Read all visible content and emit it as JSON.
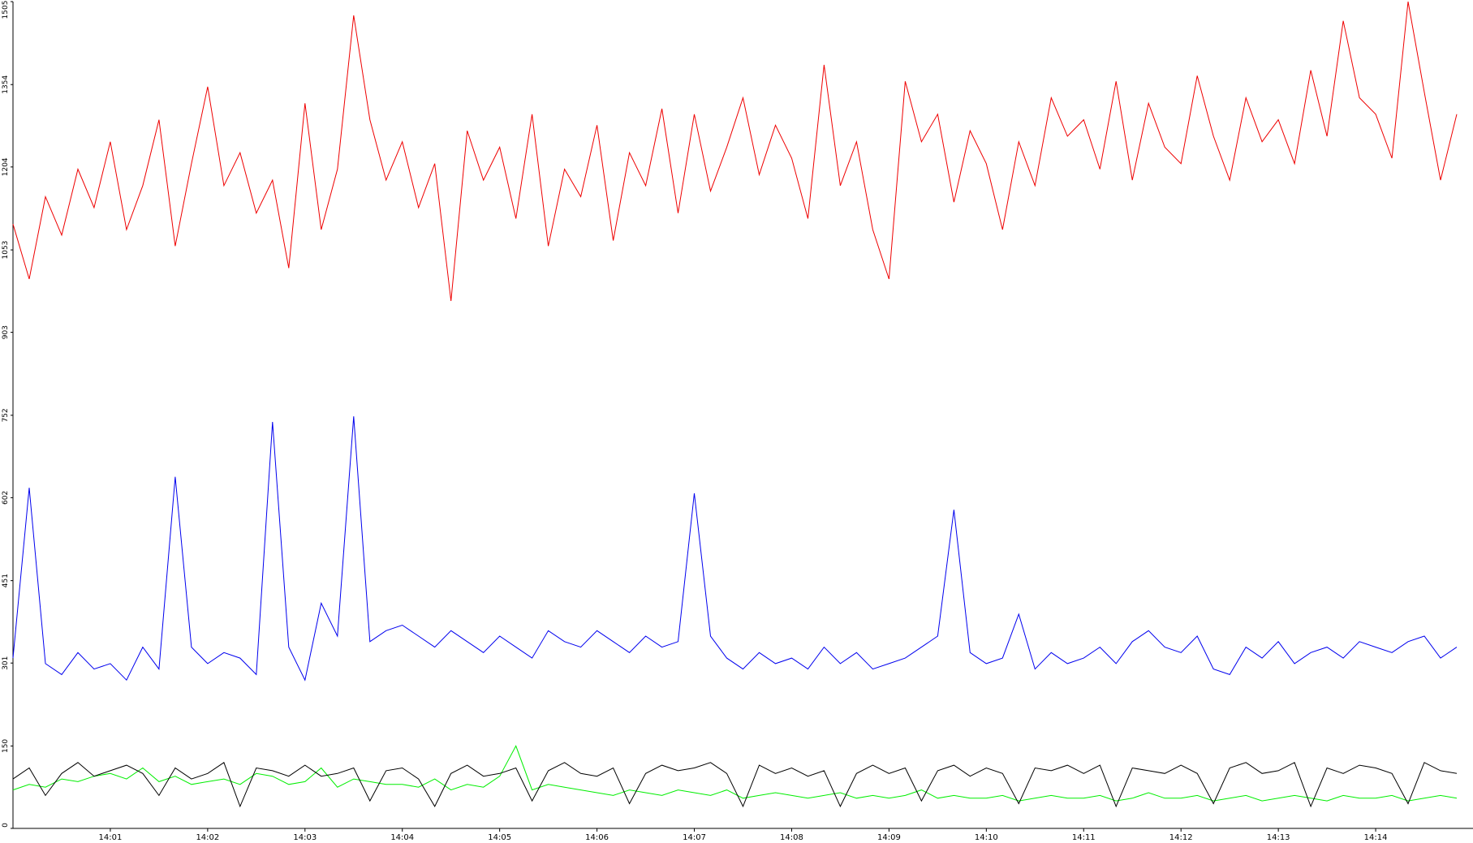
{
  "chart_data": {
    "type": "line",
    "x": [
      "14:00:00",
      "14:00:10",
      "14:00:20",
      "14:00:30",
      "14:00:40",
      "14:00:50",
      "14:01:00",
      "14:01:10",
      "14:01:20",
      "14:01:30",
      "14:01:40",
      "14:01:50",
      "14:02:00",
      "14:02:10",
      "14:02:20",
      "14:02:30",
      "14:02:40",
      "14:02:50",
      "14:03:00",
      "14:03:10",
      "14:03:20",
      "14:03:30",
      "14:03:40",
      "14:03:50",
      "14:04:00",
      "14:04:10",
      "14:04:20",
      "14:04:30",
      "14:04:40",
      "14:04:50",
      "14:05:00",
      "14:05:10",
      "14:05:20",
      "14:05:30",
      "14:05:40",
      "14:05:50",
      "14:06:00",
      "14:06:10",
      "14:06:20",
      "14:06:30",
      "14:06:40",
      "14:06:50",
      "14:07:00",
      "14:07:10",
      "14:07:20",
      "14:07:30",
      "14:07:40",
      "14:07:50",
      "14:08:00",
      "14:08:10",
      "14:08:20",
      "14:08:30",
      "14:08:40",
      "14:08:50",
      "14:09:00",
      "14:09:10",
      "14:09:20",
      "14:09:30",
      "14:09:40",
      "14:09:50",
      "14:10:00",
      "14:10:10",
      "14:10:20",
      "14:10:30",
      "14:10:40",
      "14:10:50",
      "14:11:00",
      "14:11:10",
      "14:11:20",
      "14:11:30",
      "14:11:40",
      "14:11:50",
      "14:12:00",
      "14:12:10",
      "14:12:20",
      "14:12:30",
      "14:12:40",
      "14:12:50",
      "14:13:00",
      "14:13:10",
      "14:13:20",
      "14:13:30",
      "14:13:40",
      "14:13:50",
      "14:14:00",
      "14:14:10",
      "14:14:20",
      "14:14:30",
      "14:14:40",
      "14:14:50"
    ],
    "series": [
      {
        "color": "#00ee00",
        "values": [
          70,
          80,
          75,
          90,
          85,
          95,
          100,
          90,
          110,
          85,
          95,
          80,
          85,
          90,
          80,
          100,
          95,
          80,
          85,
          110,
          75,
          90,
          85,
          80,
          80,
          75,
          90,
          70,
          80,
          75,
          95,
          150,
          70,
          80,
          75,
          70,
          65,
          60,
          70,
          65,
          60,
          70,
          65,
          60,
          70,
          55,
          60,
          65,
          60,
          55,
          60,
          65,
          55,
          60,
          55,
          60,
          70,
          55,
          60,
          55,
          55,
          60,
          50,
          55,
          60,
          55,
          55,
          60,
          50,
          55,
          65,
          55,
          55,
          60,
          50,
          55,
          60,
          50,
          55,
          60,
          55,
          50,
          60,
          55,
          55,
          60,
          50,
          55,
          60,
          55
        ]
      },
      {
        "color": "#000000",
        "values": [
          90,
          110,
          60,
          100,
          120,
          95,
          105,
          115,
          100,
          60,
          110,
          90,
          100,
          120,
          40,
          110,
          105,
          95,
          115,
          95,
          100,
          110,
          50,
          105,
          110,
          90,
          40,
          100,
          115,
          95,
          100,
          110,
          50,
          105,
          120,
          100,
          95,
          110,
          45,
          100,
          115,
          105,
          110,
          120,
          100,
          40,
          115,
          100,
          110,
          95,
          105,
          40,
          100,
          115,
          100,
          110,
          50,
          105,
          115,
          95,
          110,
          100,
          45,
          110,
          105,
          115,
          100,
          115,
          40,
          110,
          105,
          100,
          115,
          100,
          45,
          110,
          120,
          100,
          105,
          120,
          40,
          110,
          100,
          115,
          110,
          100,
          45,
          120,
          105,
          100
        ]
      },
      {
        "color": "#0000ee",
        "values": [
          310,
          620,
          300,
          280,
          320,
          290,
          300,
          270,
          330,
          290,
          640,
          330,
          300,
          320,
          310,
          280,
          740,
          330,
          270,
          410,
          350,
          750,
          340,
          360,
          370,
          350,
          330,
          360,
          340,
          320,
          350,
          330,
          310,
          360,
          340,
          330,
          360,
          340,
          320,
          350,
          330,
          340,
          610,
          350,
          310,
          290,
          320,
          300,
          310,
          290,
          330,
          300,
          320,
          290,
          300,
          310,
          330,
          350,
          580,
          320,
          300,
          310,
          390,
          290,
          320,
          300,
          310,
          330,
          300,
          340,
          360,
          330,
          320,
          350,
          290,
          280,
          330,
          310,
          340,
          300,
          320,
          330,
          310,
          340,
          330,
          320,
          340,
          350,
          310,
          330
        ]
      },
      {
        "color": "#ee0000",
        "values": [
          1100,
          1000,
          1150,
          1080,
          1200,
          1130,
          1250,
          1090,
          1170,
          1290,
          1060,
          1210,
          1350,
          1170,
          1230,
          1120,
          1180,
          1020,
          1320,
          1090,
          1200,
          1480,
          1290,
          1180,
          1250,
          1130,
          1210,
          960,
          1270,
          1180,
          1240,
          1110,
          1300,
          1060,
          1200,
          1150,
          1280,
          1070,
          1230,
          1170,
          1310,
          1120,
          1300,
          1160,
          1240,
          1330,
          1190,
          1280,
          1220,
          1110,
          1390,
          1170,
          1250,
          1090,
          1000,
          1360,
          1250,
          1300,
          1140,
          1270,
          1210,
          1090,
          1250,
          1170,
          1330,
          1260,
          1290,
          1200,
          1360,
          1180,
          1320,
          1240,
          1210,
          1370,
          1260,
          1180,
          1330,
          1250,
          1290,
          1210,
          1380,
          1260,
          1470,
          1330,
          1300,
          1220,
          1505,
          1340,
          1180,
          1300
        ]
      }
    ],
    "xlim": [
      "14:00:00",
      "14:15:00"
    ],
    "xticks": [
      "14:01",
      "14:02",
      "14:03",
      "14:04",
      "14:05",
      "14:06",
      "14:07",
      "14:08",
      "14:09",
      "14:10",
      "14:11",
      "14:12",
      "14:13",
      "14:14"
    ],
    "ylim": [
      0,
      1505
    ],
    "yticks": [
      0,
      150,
      301,
      451,
      602,
      752,
      903,
      1053,
      1204,
      1354,
      1505
    ]
  }
}
